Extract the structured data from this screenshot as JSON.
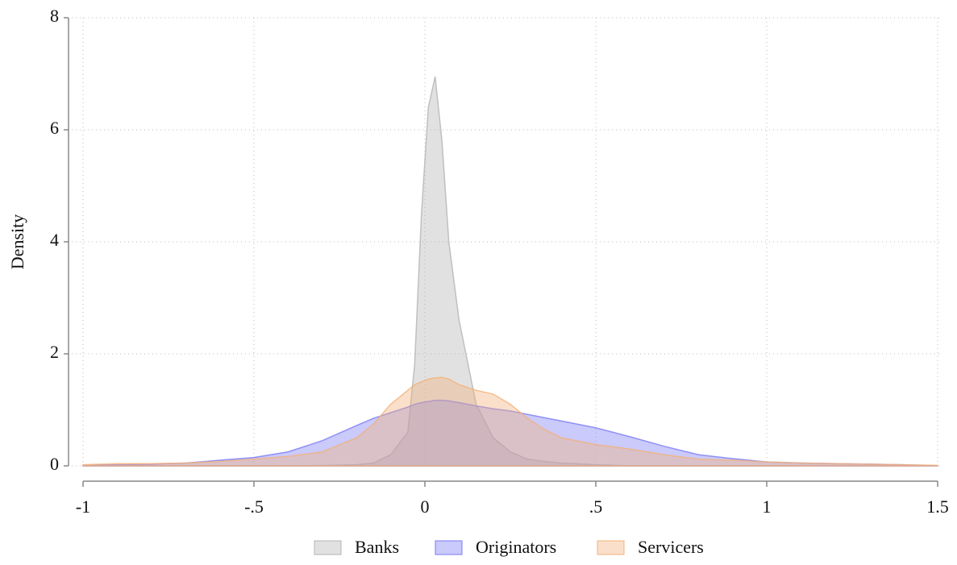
{
  "chart_data": {
    "type": "area",
    "ylabel": "Density",
    "x": [
      -1,
      -0.9,
      -0.8,
      -0.7,
      -0.6,
      -0.5,
      -0.4,
      -0.3,
      -0.2,
      -0.15,
      -0.1,
      -0.05,
      -0.03,
      -0.01,
      0.01,
      0.03,
      0.05,
      0.07,
      0.1,
      0.15,
      0.2,
      0.25,
      0.3,
      0.35,
      0.4,
      0.5,
      0.6,
      0.7,
      0.8,
      0.9,
      1,
      1.1,
      1.2,
      1.3,
      1.4,
      1.5
    ],
    "series": [
      {
        "name": "Banks",
        "color": "#b4b4b4",
        "values": [
          0,
          0,
          0,
          0,
          0,
          0,
          0,
          0.005,
          0.02,
          0.05,
          0.2,
          0.6,
          1.8,
          4.5,
          6.4,
          6.95,
          5.8,
          4.0,
          2.6,
          1.1,
          0.5,
          0.25,
          0.12,
          0.08,
          0.05,
          0.02,
          0,
          0,
          0,
          0,
          0,
          0,
          0,
          0,
          0,
          0
        ]
      },
      {
        "name": "Originators",
        "color": "#7b7bf5",
        "values": [
          0.01,
          0.02,
          0.03,
          0.05,
          0.1,
          0.15,
          0.25,
          0.45,
          0.72,
          0.85,
          0.95,
          1.05,
          1.1,
          1.13,
          1.15,
          1.17,
          1.17,
          1.16,
          1.13,
          1.07,
          1.02,
          0.98,
          0.92,
          0.86,
          0.8,
          0.68,
          0.52,
          0.35,
          0.2,
          0.13,
          0.07,
          0.05,
          0.04,
          0.03,
          0.02,
          0
        ]
      },
      {
        "name": "Servicers",
        "color": "#f2b27a",
        "values": [
          0.02,
          0.04,
          0.04,
          0.05,
          0.08,
          0.12,
          0.17,
          0.25,
          0.5,
          0.75,
          1.1,
          1.35,
          1.45,
          1.5,
          1.55,
          1.57,
          1.58,
          1.55,
          1.45,
          1.35,
          1.28,
          1.1,
          0.85,
          0.65,
          0.5,
          0.38,
          0.3,
          0.2,
          0.12,
          0.1,
          0.07,
          0.05,
          0.04,
          0.03,
          0.02,
          0.01
        ]
      }
    ],
    "xlim": [
      -1,
      1.5
    ],
    "xticks": [
      -1,
      {
        "value": -0.5,
        "label": "-.5"
      },
      0,
      {
        "value": 0.5,
        "label": ".5"
      },
      1,
      1.5
    ],
    "ylim": [
      0,
      8
    ],
    "yticks": [
      0,
      2,
      4,
      6,
      8
    ],
    "grid": true,
    "legend": "bottom"
  }
}
